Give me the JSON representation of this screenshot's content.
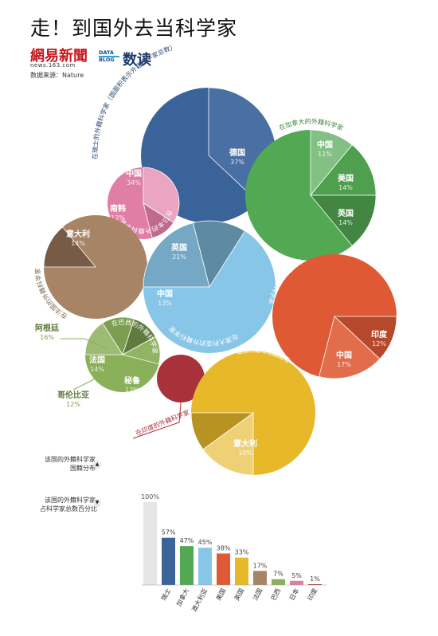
{
  "header": {
    "title": "走！到国外去当科学家",
    "brand": "網易新聞",
    "brand_sub": "news.163.com",
    "source": "数据来源：Nature",
    "datablog_line1": "DATA",
    "datablog_line2": "BLOG",
    "shudu": "数读"
  },
  "legend": {
    "distribution_label_1": "该国的外籍科学家",
    "distribution_label_2": "国籍分布",
    "distribution_icon": "triangle-up-icon",
    "share_label_1": "该国的外籍科学家",
    "share_label_2": "占科学家总数百分比",
    "share_icon": "triangle-down-icon"
  },
  "chart_data": [
    {
      "type": "pie",
      "description_type": "bubble-pie",
      "circles": [
        {
          "id": "switzerland",
          "label": "在瑞士的外籍科学家（圆面积表示外籍科学家总数）",
          "color": "#3a639a",
          "slices": [
            {
              "name": "德国",
              "value": 37,
              "label": "37%"
            }
          ]
        },
        {
          "id": "canada",
          "label": "在加拿大的外籍科学家",
          "color": "#52a853",
          "slices": [
            {
              "name": "中国",
              "value": 11,
              "label": "11%"
            },
            {
              "name": "美国",
              "value": 14,
              "label": "14%"
            },
            {
              "name": "英国",
              "value": 14,
              "label": "14%"
            }
          ]
        },
        {
          "id": "japan",
          "label": "在日本的外籍科学家",
          "color": "#e07ea6",
          "slices": [
            {
              "name": "中国",
              "value": 34,
              "label": "34%"
            },
            {
              "name": "南韩",
              "value": 12,
              "label": "12%"
            }
          ]
        },
        {
          "id": "france",
          "label": "在法国的外籍科学家",
          "color": "#a88466",
          "slices": [
            {
              "name": "意大利",
              "value": 14,
              "label": "14%"
            }
          ]
        },
        {
          "id": "australia",
          "label": "在澳大利亚的外籍科学家",
          "color": "#88c6e8",
          "slices": [
            {
              "name": "英国",
              "value": 21,
              "label": "21%"
            },
            {
              "name": "中国",
              "value": 13,
              "label": "13%"
            }
          ]
        },
        {
          "id": "usa",
          "label": "在美国的外籍科学家",
          "color": "#de5934",
          "slices": [
            {
              "name": "印度",
              "value": 12,
              "label": "12%"
            },
            {
              "name": "中国",
              "value": 17,
              "label": "17%"
            }
          ]
        },
        {
          "id": "brazil",
          "label": "在巴西的外籍科学家",
          "color": "#8bb05a",
          "slices": [
            {
              "name": "阿根廷",
              "value": 16,
              "label": "16%"
            },
            {
              "name": "法国",
              "value": 14,
              "label": "14%"
            },
            {
              "name": "秘鲁",
              "value": 12,
              "label": "12%"
            },
            {
              "name": "哥伦比亚",
              "value": 12,
              "label": "12%"
            }
          ]
        },
        {
          "id": "india",
          "label": "在印度的外籍科学家",
          "color": "#a8323a",
          "slices": []
        },
        {
          "id": "uk",
          "label": "在英国的外籍科学家",
          "color": "#e6b82a",
          "slices": [
            {
              "name": "德国",
              "value": 15,
              "label": "15%"
            },
            {
              "name": "意大利",
              "value": 10,
              "label": "10%"
            }
          ]
        }
      ]
    },
    {
      "type": "bar",
      "categories": [
        "瑞士",
        "加拿大",
        "澳大利亚",
        "美国",
        "英国",
        "法国",
        "巴西",
        "日本",
        "印度"
      ],
      "reference": {
        "value": 100,
        "label": "100%",
        "color": "#e6e6e6"
      },
      "values": [
        57,
        47,
        45,
        38,
        33,
        17,
        7,
        5,
        1
      ],
      "value_labels": [
        "57%",
        "47%",
        "45%",
        "38%",
        "33%",
        "17%",
        "7%",
        "5%",
        "1%"
      ],
      "colors": [
        "#3a639a",
        "#52a853",
        "#88c6e8",
        "#de5934",
        "#e6b82a",
        "#a88466",
        "#8bb05a",
        "#e07ea6",
        "#a8323a"
      ],
      "ylim": [
        0,
        100
      ]
    }
  ]
}
